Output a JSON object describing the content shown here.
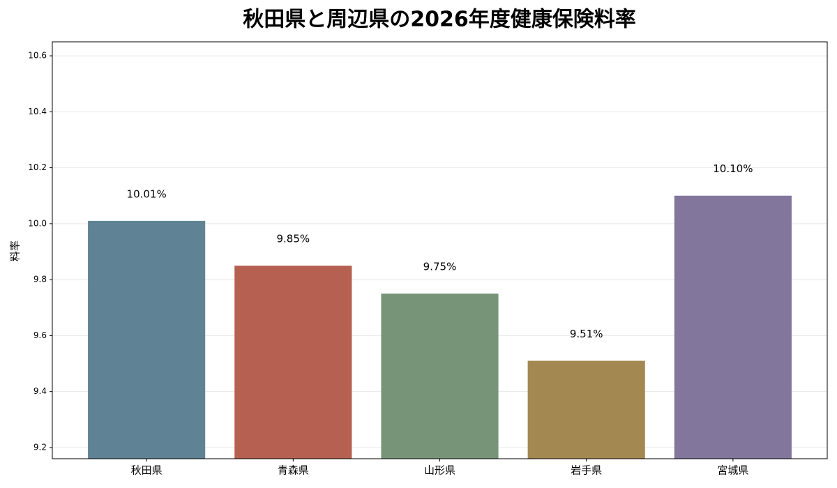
{
  "chart_data": {
    "type": "bar",
    "title": "秋田県と周辺県の2026年度健康保険料率",
    "ylabel": "料率",
    "categories": [
      "秋田県",
      "青森県",
      "山形県",
      "岩手県",
      "宮城県"
    ],
    "values": [
      10.01,
      9.85,
      9.75,
      9.51,
      10.1
    ],
    "value_labels": [
      "10.01%",
      "9.85%",
      "9.75%",
      "9.51%",
      "10.10%"
    ],
    "colors": [
      "#5f8394",
      "#b56050",
      "#779479",
      "#a38851",
      "#82769c"
    ],
    "ylim": [
      9.16,
      10.65
    ],
    "yticks": [
      9.2,
      9.4,
      9.6,
      9.8,
      {
        "value": 10.0,
        "label": "10.0"
      },
      10.2,
      10.4,
      10.6
    ],
    "grid": true
  }
}
